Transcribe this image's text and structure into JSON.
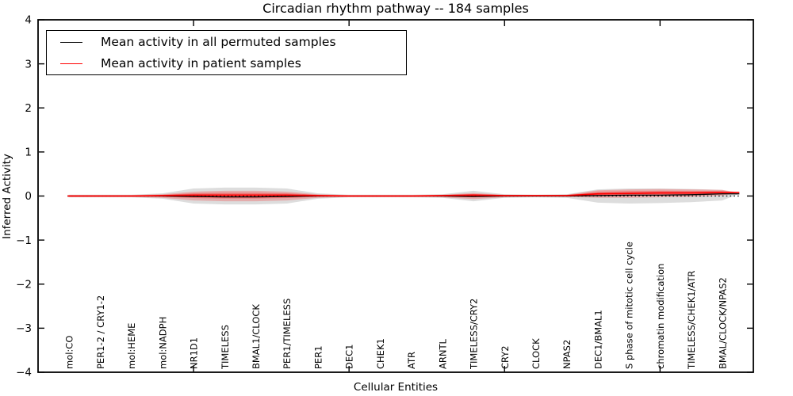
{
  "chart_data": {
    "type": "line",
    "title": "Circadian rhythm pathway -- 184 samples",
    "xlabel": "Cellular Entities",
    "ylabel": "Inferred Activity",
    "ylim": [
      -4,
      4
    ],
    "ytick_values": [
      4,
      3,
      2,
      1,
      0,
      -1,
      -2,
      -3,
      -4
    ],
    "ytick_labels": [
      "4",
      "3",
      "2",
      "1",
      "0",
      "−1",
      "−2",
      "−3",
      "−4"
    ],
    "xtick_positions_unlabeled": [
      5,
      10,
      15,
      20
    ],
    "grid": false,
    "reference_line_y": 0,
    "legend_position": "upper left",
    "categories": [
      "mol:CO",
      "PER1-2 / CRY1-2",
      "mol:HEME",
      "mol:NADPH",
      "NR1D1",
      "TIMELESS",
      "BMAL1/CLOCK",
      "PER1/TIMELESS",
      "PER1",
      "DEC1",
      "CHEK1",
      "ATR",
      "ARNTL",
      "TIMELESS/CRY2",
      "CRY2",
      "CLOCK",
      "NPAS2",
      "DEC1/BMAL1",
      "S phase of mitotic cell cycle",
      "chromatin modification",
      "TIMELESS/CHEK1/ATR",
      "BMAL/CLOCK/NPAS2"
    ],
    "series": [
      {
        "name": "Mean activity in all permuted samples",
        "color": "#000000",
        "values": [
          0,
          0,
          0,
          0,
          -0.01,
          -0.02,
          -0.02,
          -0.01,
          0,
          0,
          0,
          0,
          0,
          -0.01,
          0,
          0,
          0,
          0.01,
          0.02,
          0.02,
          0.03,
          0.05
        ],
        "band_upper": [
          0.03,
          0.03,
          0.03,
          0.06,
          0.17,
          0.19,
          0.19,
          0.17,
          0.06,
          0.03,
          0.03,
          0.03,
          0.04,
          0.12,
          0.04,
          0.03,
          0.04,
          0.15,
          0.17,
          0.17,
          0.16,
          0.14
        ],
        "band_lower": [
          -0.03,
          -0.03,
          -0.03,
          -0.06,
          -0.17,
          -0.19,
          -0.19,
          -0.17,
          -0.06,
          -0.03,
          -0.03,
          -0.03,
          -0.04,
          -0.12,
          -0.04,
          -0.03,
          -0.04,
          -0.15,
          -0.17,
          -0.16,
          -0.14,
          -0.1
        ],
        "band_color": "rgba(128,128,128,0.27)"
      },
      {
        "name": "Mean activity in patient samples",
        "color": "#ff0000",
        "values": [
          0,
          0,
          0,
          0.01,
          0.02,
          0.02,
          0.02,
          0.02,
          0.01,
          0,
          0,
          0,
          0.01,
          0.02,
          0.01,
          0.01,
          0.01,
          0.05,
          0.06,
          0.07,
          0.07,
          0.08
        ],
        "band_upper": [
          0.02,
          0.02,
          0.02,
          0.04,
          0.1,
          0.12,
          0.12,
          0.1,
          0.04,
          0.02,
          0.02,
          0.02,
          0.03,
          0.07,
          0.03,
          0.02,
          0.03,
          0.13,
          0.15,
          0.16,
          0.15,
          0.14
        ],
        "band_lower": [
          -0.02,
          -0.02,
          -0.02,
          -0.04,
          -0.1,
          -0.12,
          -0.12,
          -0.1,
          -0.04,
          -0.02,
          -0.02,
          -0.02,
          -0.03,
          -0.07,
          -0.03,
          -0.02,
          -0.02,
          -0.04,
          -0.04,
          -0.03,
          -0.02,
          0.01
        ],
        "band_color": "rgba(255,0,0,0.22)"
      }
    ],
    "legend": {
      "entries": [
        {
          "label": "Mean activity in all permuted samples",
          "color": "#000000"
        },
        {
          "label": "Mean activity in patient samples",
          "color": "#ff0000"
        }
      ]
    }
  }
}
